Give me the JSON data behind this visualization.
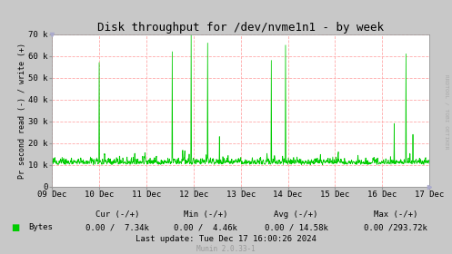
{
  "title": "Disk throughput for /dev/nvme1n1 - by week",
  "ylabel": "Pr second read (-) / write (+)",
  "bg_color": "#c8c8c8",
  "plot_bg_color": "#ffffff",
  "grid_color": "#ffaaaa",
  "line_color": "#00cc00",
  "x_tick_labels": [
    "09 Dec",
    "10 Dec",
    "11 Dec",
    "12 Dec",
    "13 Dec",
    "14 Dec",
    "15 Dec",
    "16 Dec",
    "17 Dec"
  ],
  "ylim": [
    0,
    70000
  ],
  "yticks": [
    0,
    10000,
    20000,
    30000,
    40000,
    50000,
    60000,
    70000
  ],
  "ytick_labels": [
    "0",
    "10 k",
    "20 k",
    "30 k",
    "40 k",
    "50 k",
    "60 k",
    "70 k"
  ],
  "rrdtool_text": "RRDTOOL / TOBI OETIKER",
  "legend_label": "Bytes",
  "legend_color": "#00cc00",
  "cur_text": "Cur (-/+)",
  "cur_val": "0.00 /  7.34k",
  "min_text": "Min (-/+)",
  "min_val": "0.00 /  4.46k",
  "avg_text": "Avg (-/+)",
  "avg_val": "0.00 / 14.58k",
  "max_text": "Max (-/+)",
  "max_val": "0.00 /293.72k",
  "last_update": "Last update: Tue Dec 17 16:00:26 2024",
  "munin_ver": "Munin 2.0.33-1"
}
